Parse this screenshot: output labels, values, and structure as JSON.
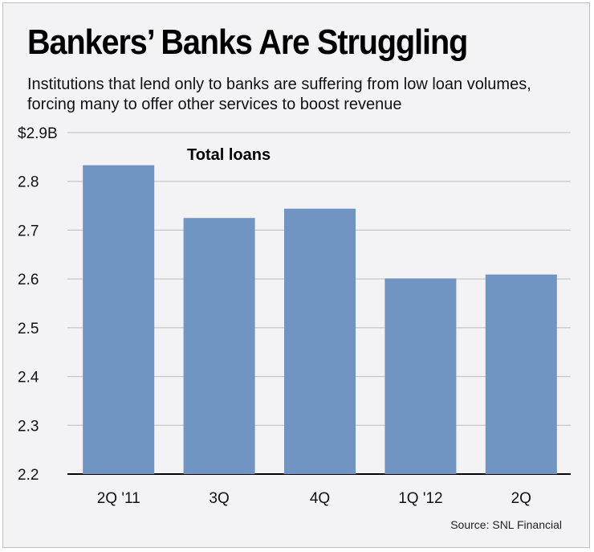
{
  "title": "Bankers’ Banks Are Struggling",
  "subtitle": "Institutions that lend only to banks are suffering from low loan volumes, forcing many to offer other services to boost revenue",
  "source": "Source: SNL Financial",
  "chart_data": {
    "type": "bar",
    "series_label": "Total loans",
    "categories": [
      "2Q '11",
      "3Q",
      "4Q",
      "1Q '12",
      "2Q"
    ],
    "values": [
      2.833,
      2.725,
      2.744,
      2.601,
      2.609
    ],
    "ylim": [
      2.2,
      2.9
    ],
    "yticks": [
      2.2,
      2.3,
      2.4,
      2.5,
      2.6,
      2.7,
      2.8,
      2.9
    ],
    "ytick_labels": [
      "2.2",
      "2.3",
      "2.4",
      "2.5",
      "2.6",
      "2.7",
      "2.8",
      "$2.9B"
    ],
    "grid": true,
    "bar_color": "#7095c3",
    "grid_color": "#bdbdbd"
  }
}
